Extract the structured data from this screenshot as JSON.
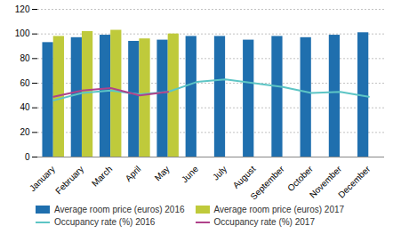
{
  "chart_data": {
    "type": "bar",
    "categories": [
      "January",
      "February",
      "March",
      "April",
      "May",
      "June",
      "July",
      "August",
      "September",
      "October",
      "November",
      "December"
    ],
    "series": [
      {
        "name": "Average room price (euros) 2016",
        "type": "bar",
        "color": "#1F6FAE",
        "values": [
          93,
          97,
          99,
          94,
          95,
          98,
          98,
          95,
          98,
          97,
          99,
          101
        ]
      },
      {
        "name": "Average room price (euros) 2017",
        "type": "bar",
        "color": "#BFCA3B",
        "values": [
          98,
          102,
          103,
          96,
          100,
          null,
          null,
          null,
          null,
          null,
          null,
          null
        ]
      },
      {
        "name": "Occupancy rate (%) 2016",
        "type": "line",
        "color": "#5DC5C5",
        "values": [
          46,
          52,
          54,
          51,
          53,
          61,
          63,
          60,
          57,
          52,
          53,
          49
        ]
      },
      {
        "name": "Occupancy rate (%) 2017",
        "type": "line",
        "color": "#B0428A",
        "values": [
          49,
          54,
          56,
          50,
          53,
          null,
          null,
          null,
          null,
          null,
          null,
          null
        ]
      }
    ],
    "ylim": [
      0,
      120
    ],
    "yticks": [
      0,
      20,
      40,
      60,
      80,
      100,
      120
    ],
    "grid": true,
    "legend": "bottom"
  }
}
